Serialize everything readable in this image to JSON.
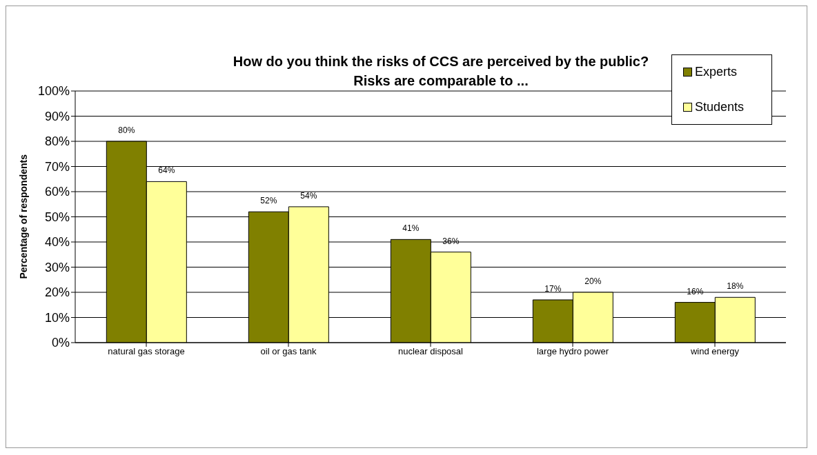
{
  "chart_data": {
    "type": "bar",
    "title": "How do you think the risks of CCS are perceived by the public?",
    "subtitle": "Risks are comparable to ...",
    "ylabel": "Percentage of respondents",
    "categories": [
      "natural gas storage",
      "oil or gas tank",
      "nuclear disposal",
      "large hydro power",
      "wind energy"
    ],
    "series": [
      {
        "name": "Experts",
        "color": "#808000",
        "values": [
          80,
          52,
          41,
          17,
          16
        ],
        "value_labels": [
          "80%",
          "52%",
          "41%",
          "17%",
          "16%"
        ]
      },
      {
        "name": "Students",
        "color": "#ffff99",
        "values": [
          64,
          54,
          36,
          20,
          18
        ],
        "value_labels": [
          "64%",
          "54%",
          "36%",
          "20%",
          "18%"
        ]
      }
    ],
    "ylim": [
      0,
      100
    ],
    "yticks": [
      {
        "value": 0,
        "label": "0%"
      },
      {
        "value": 10,
        "label": "10%"
      },
      {
        "value": 20,
        "label": "20%"
      },
      {
        "value": 30,
        "label": "30%"
      },
      {
        "value": 40,
        "label": "40%"
      },
      {
        "value": 50,
        "label": "50%"
      },
      {
        "value": 60,
        "label": "60%"
      },
      {
        "value": 70,
        "label": "70%"
      },
      {
        "value": 80,
        "label": "80%"
      },
      {
        "value": 90,
        "label": "90%"
      },
      {
        "value": 100,
        "label": "100%"
      }
    ],
    "grid": "y",
    "legend": "top right"
  }
}
